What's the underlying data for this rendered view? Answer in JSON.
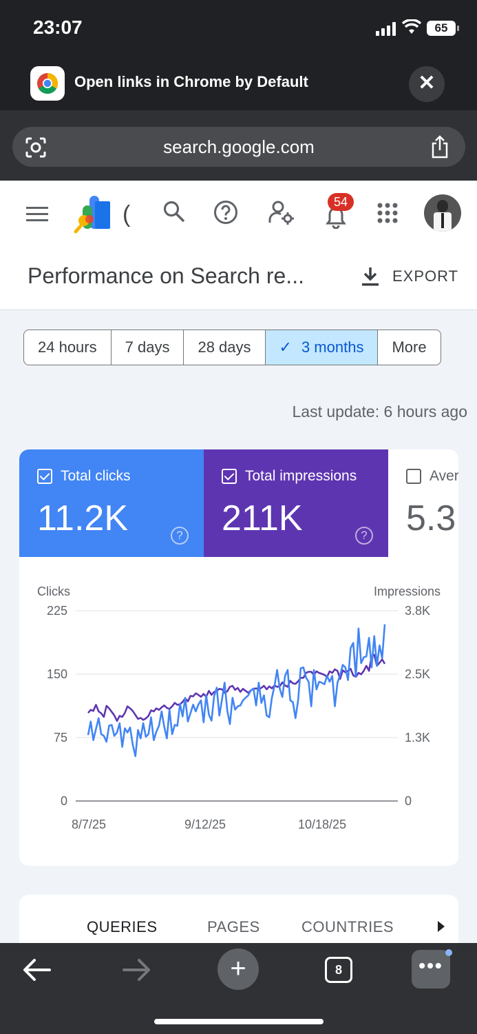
{
  "status": {
    "time": "23:07",
    "battery": "65"
  },
  "banner": {
    "title": "Open links in Chrome by Default",
    "close": "✕"
  },
  "urlbar": {
    "url": "search.google.com"
  },
  "app": {
    "logo_partial": "(",
    "notification_count": "54",
    "page_title": "Performance on Search re...",
    "export_label": "EXPORT"
  },
  "date_range": {
    "options": [
      "24 hours",
      "7 days",
      "28 days",
      "3 months",
      "More"
    ],
    "selected": "3 months",
    "check": "✓"
  },
  "last_update": "Last update: 6 hours ago",
  "metrics": [
    {
      "label": "Total clicks",
      "value": "11.2K",
      "checked": true,
      "color": "#4285f4"
    },
    {
      "label": "Total impressions",
      "value": "211K",
      "checked": true,
      "color": "#5e35b1"
    },
    {
      "label": "Aver",
      "value": "5.3",
      "checked": false,
      "color": "#ffffff"
    }
  ],
  "help_glyph": "?",
  "chart_data": {
    "type": "line",
    "left_axis_label": "Clicks",
    "right_axis_label": "Impressions",
    "left_ticks": [
      "225",
      "150",
      "75",
      "0"
    ],
    "right_ticks": [
      "3.8K",
      "2.5K",
      "1.3K",
      "0"
    ],
    "x_tick_labels": [
      "8/7/25",
      "9/12/25",
      "10/18/25"
    ],
    "ylim_left": [
      0,
      225
    ],
    "ylim_right": [
      0,
      3800
    ],
    "grid": true,
    "series": [
      {
        "name": "Clicks",
        "axis": "left",
        "color": "#4285f4",
        "values": [
          78,
          94,
          72,
          85,
          98,
          79,
          77,
          70,
          89,
          90,
          77,
          81,
          92,
          64,
          86,
          81,
          87,
          67,
          53,
          84,
          74,
          92,
          76,
          79,
          99,
          72,
          82,
          89,
          106,
          88,
          74,
          108,
          79,
          90,
          89,
          115,
          100,
          122,
          94,
          104,
          114,
          106,
          114,
          119,
          93,
          125,
          102,
          95,
          124,
          134,
          101,
          120,
          140,
          107,
          91,
          122,
          108,
          112,
          113,
          119,
          122,
          125,
          131,
          133,
          113,
          140,
          116,
          125,
          101,
          99,
          122,
          136,
          155,
          133,
          123,
          148,
          155,
          119,
          117,
          98,
          119,
          157,
          158,
          146,
          141,
          112,
          155,
          132,
          141,
          140,
          138,
          148,
          141,
          148,
          112,
          140,
          149,
          161,
          158,
          143,
          181,
          187,
          147,
          204,
          163,
          170,
          171,
          193,
          158,
          195,
          160,
          184,
          169,
          209
        ]
      },
      {
        "name": "Impressions",
        "axis": "right",
        "color": "#5e35b1",
        "values": [
          1760,
          1820,
          1800,
          1920,
          1790,
          1750,
          1680,
          1900,
          1850,
          1780,
          1710,
          1600,
          1700,
          1680,
          1760,
          1890,
          1850,
          1800,
          1720,
          1640,
          1660,
          1620,
          1650,
          1700,
          1810,
          1790,
          1850,
          1820,
          1870,
          1910,
          1860,
          1840,
          1890,
          1960,
          1920,
          1930,
          1980,
          2050,
          1990,
          2100,
          2090,
          2150,
          2120,
          2080,
          2140,
          2080,
          2200,
          2120,
          2180,
          2200,
          2240,
          2230,
          2160,
          2190,
          2280,
          2300,
          2220,
          2260,
          2180,
          2240,
          2200,
          2160,
          2210,
          2240,
          2250,
          2230,
          2260,
          2300,
          2230,
          2290,
          2250,
          2310,
          2280,
          2290,
          2370,
          2310,
          2280,
          2400,
          2350,
          2340,
          2390,
          2460,
          2460,
          2560,
          2580,
          2580,
          2520,
          2590,
          2560,
          2540,
          2520,
          2480,
          2590,
          2560,
          2630,
          2600,
          2440,
          2610,
          2570,
          2600,
          2640,
          2510,
          2480,
          2560,
          2530,
          2600,
          2700,
          2600,
          2890,
          2920,
          2700,
          2760,
          2830,
          2740
        ]
      }
    ]
  },
  "bottom_tabs": {
    "items": [
      "QUERIES",
      "PAGES",
      "COUNTRIES"
    ],
    "active": "QUERIES"
  },
  "toolbar": {
    "tab_count": "8",
    "plus": "+",
    "more": "•••"
  }
}
